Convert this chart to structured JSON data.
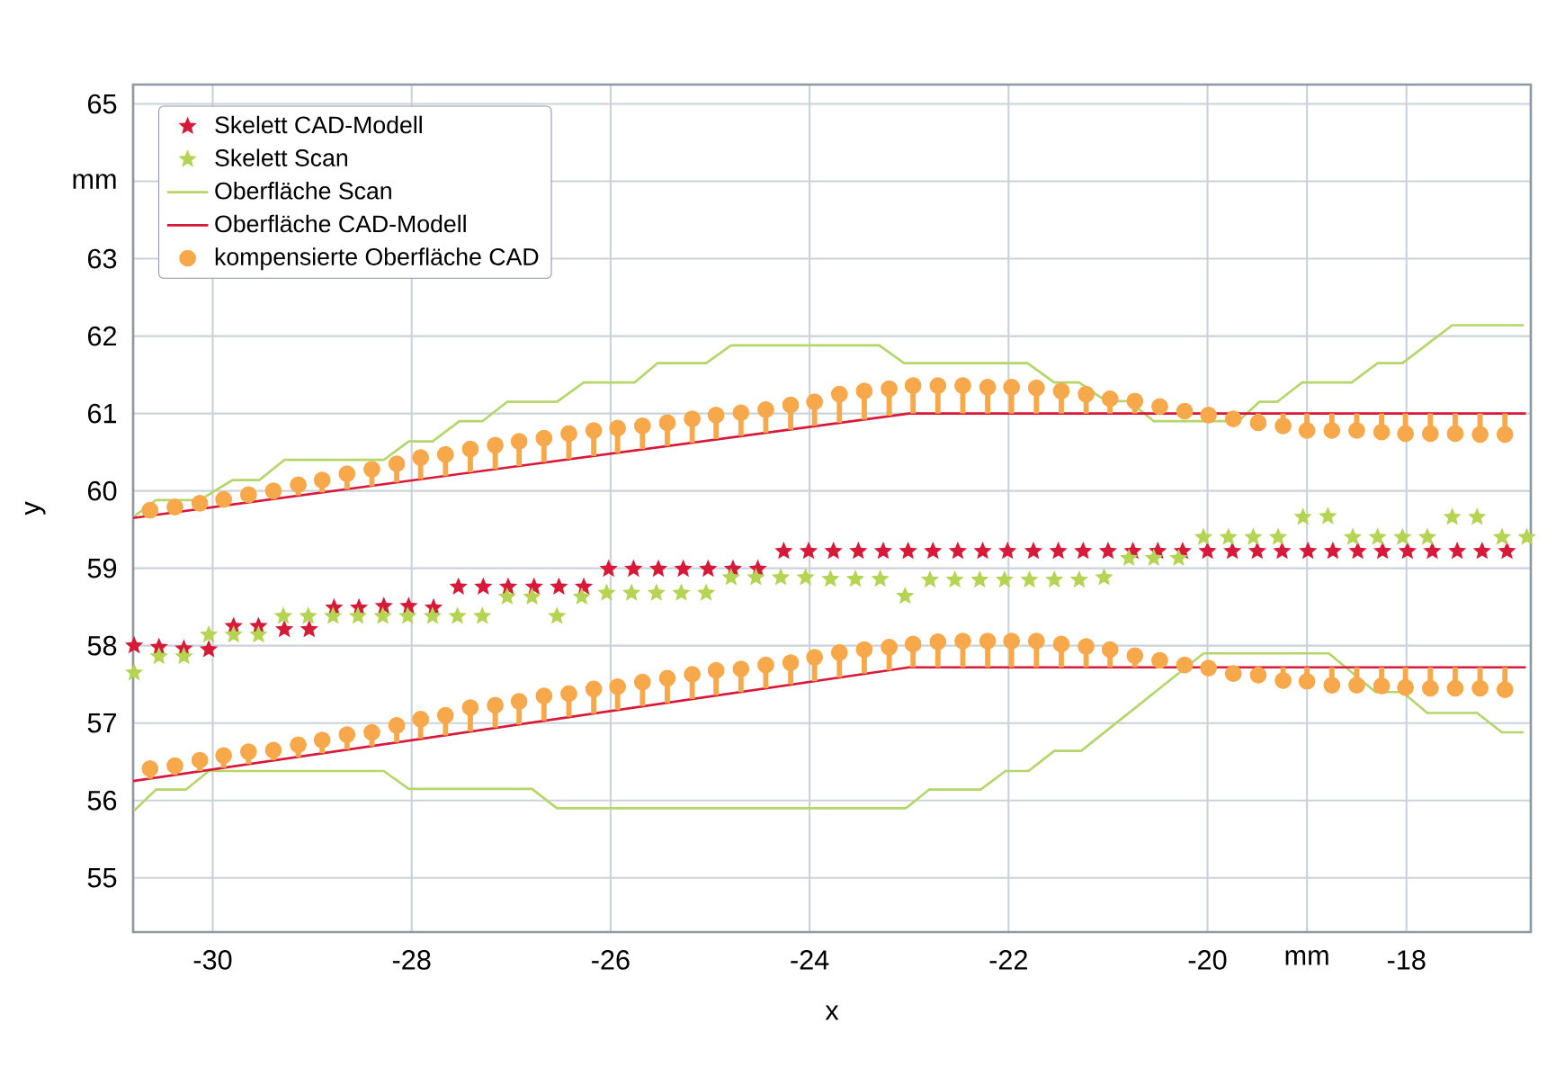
{
  "chart_data": {
    "type": "scatter",
    "xlabel": "x",
    "ylabel": "y",
    "xlim": [
      -30.8,
      -16.75
    ],
    "ylim": [
      54.3,
      65.25
    ],
    "xticks": [
      -30,
      -28,
      -26,
      -24,
      -22,
      -20,
      {
        "value": -19,
        "label": "mm"
      },
      -18
    ],
    "yticks": [
      55,
      56,
      57,
      58,
      59,
      60,
      61,
      62,
      63,
      {
        "value": 64,
        "label": "mm"
      },
      65
    ],
    "grid": true,
    "legend": "top left",
    "series": [
      {
        "name": "Skelett CAD-Modell",
        "type": "scatter",
        "marker": "star",
        "color": "#d7193a",
        "x": [
          -30.79,
          -30.54,
          -30.29,
          -30.04,
          -29.79,
          -29.54,
          -29.28,
          -29.03,
          -28.78,
          -28.53,
          -28.28,
          -28.03,
          -27.78,
          -27.53,
          -27.28,
          -27.03,
          -26.77,
          -26.52,
          -26.27,
          -26.02,
          -25.77,
          -25.52,
          -25.27,
          -25.02,
          -24.77,
          -24.52,
          -24.26,
          -24.01,
          -23.76,
          -23.51,
          -23.26,
          -23.01,
          -22.76,
          -22.51,
          -22.26,
          -22.01,
          -21.75,
          -21.5,
          -21.25,
          -21.0,
          -20.75,
          -20.5,
          -20.25,
          -20.0,
          -19.75,
          -19.5,
          -19.25,
          -18.99,
          -18.74,
          -18.49,
          -18.24,
          -17.99,
          -17.74,
          -17.49,
          -17.24,
          -16.99
        ],
        "values": [
          58.0,
          57.98,
          57.96,
          57.95,
          58.25,
          58.25,
          58.21,
          58.21,
          58.49,
          58.49,
          58.51,
          58.51,
          58.49,
          58.76,
          58.76,
          58.76,
          58.76,
          58.76,
          58.76,
          58.99,
          58.99,
          58.99,
          58.99,
          58.99,
          58.99,
          58.99,
          59.22,
          59.22,
          59.22,
          59.22,
          59.22,
          59.22,
          59.22,
          59.22,
          59.22,
          59.22,
          59.22,
          59.22,
          59.22,
          59.22,
          59.22,
          59.22,
          59.22,
          59.22,
          59.22,
          59.22,
          59.22,
          59.22,
          59.22,
          59.22,
          59.22,
          59.22,
          59.22,
          59.22,
          59.22,
          59.22
        ]
      },
      {
        "name": "Skelett Scan",
        "type": "scatter",
        "marker": "star",
        "color": "#b5d453",
        "x": [
          -30.79,
          -30.54,
          -30.29,
          -30.04,
          -29.79,
          -29.54,
          -29.29,
          -29.04,
          -28.79,
          -28.54,
          -28.29,
          -28.04,
          -27.79,
          -27.54,
          -27.29,
          -27.04,
          -26.79,
          -26.54,
          -26.29,
          -26.04,
          -25.79,
          -25.54,
          -25.29,
          -25.04,
          -24.79,
          -24.54,
          -24.29,
          -24.04,
          -23.79,
          -23.54,
          -23.29,
          -23.04,
          -22.79,
          -22.54,
          -22.29,
          -22.04,
          -21.79,
          -21.54,
          -21.29,
          -21.04,
          -20.79,
          -20.54,
          -20.29,
          -20.04,
          -19.79,
          -19.54,
          -19.29,
          -19.04,
          -18.79,
          -18.54,
          -18.29,
          -18.04,
          -17.79,
          -17.54,
          -17.29,
          -17.04,
          -16.79
        ],
        "values": [
          57.65,
          57.86,
          57.86,
          58.14,
          58.14,
          58.14,
          58.38,
          58.38,
          58.38,
          58.38,
          58.38,
          58.38,
          58.38,
          58.38,
          58.38,
          58.63,
          58.63,
          58.38,
          58.63,
          58.68,
          58.68,
          58.68,
          58.68,
          58.68,
          58.88,
          58.88,
          58.88,
          58.88,
          58.86,
          58.86,
          58.86,
          58.64,
          58.85,
          58.85,
          58.85,
          58.85,
          58.85,
          58.85,
          58.85,
          58.88,
          59.13,
          59.13,
          59.13,
          59.4,
          59.4,
          59.4,
          59.4,
          59.66,
          59.67,
          59.4,
          59.4,
          59.4,
          59.4,
          59.66,
          59.66,
          59.4,
          59.4
        ]
      },
      {
        "name": "Oberfläche Scan",
        "type": "line",
        "color": "#b5d66b",
        "x": [
          -30.79,
          -30.57,
          -30.13,
          -29.8,
          -29.53,
          -29.28,
          -28.28,
          -28.03,
          -27.79,
          -27.52,
          -27.29,
          -27.04,
          -26.54,
          -26.27,
          -25.76,
          -25.53,
          -25.04,
          -24.79,
          -23.3,
          -23.05,
          -21.81,
          -21.54,
          -21.29,
          -21.02,
          -20.79,
          -20.54,
          -19.69,
          -19.48,
          -19.3,
          -19.05,
          -18.55,
          -18.29,
          -18.04,
          -17.54,
          -16.82
        ],
        "values": [
          59.67,
          59.88,
          59.88,
          60.14,
          60.14,
          60.4,
          60.4,
          60.64,
          60.64,
          60.9,
          60.9,
          61.15,
          61.15,
          61.4,
          61.4,
          61.65,
          61.65,
          61.88,
          61.88,
          61.65,
          61.65,
          61.4,
          61.4,
          61.16,
          61.16,
          60.9,
          60.9,
          61.15,
          61.15,
          61.4,
          61.4,
          61.65,
          61.65,
          62.14,
          62.14
        ]
      },
      {
        "type": "line",
        "color": "#b5d66b",
        "x": [
          -30.79,
          -30.57,
          -30.27,
          -30.04,
          -28.28,
          -28.03,
          -26.79,
          -26.54,
          -23.03,
          -22.8,
          -22.28,
          -22.03,
          -21.8,
          -21.54,
          -21.27,
          -20.04,
          -18.78,
          -18.31,
          -18.04,
          -17.79,
          -17.29,
          -17.04,
          -16.82
        ],
        "values": [
          55.87,
          56.14,
          56.14,
          56.38,
          56.38,
          56.15,
          56.15,
          55.9,
          55.9,
          56.14,
          56.14,
          56.38,
          56.38,
          56.64,
          56.64,
          57.9,
          57.9,
          57.4,
          57.4,
          57.13,
          57.13,
          56.88,
          56.88
        ]
      },
      {
        "name": "Oberfläche CAD-Modell",
        "type": "line",
        "color": "#d7193a",
        "x": [
          -30.8,
          -23.0,
          -16.8
        ],
        "values": [
          59.65,
          61.0,
          61.0
        ]
      },
      {
        "type": "line",
        "color": "#d7193a",
        "x": [
          -30.8,
          -23.0,
          -16.8
        ],
        "values": [
          56.25,
          57.72,
          57.72
        ]
      },
      {
        "name": "kompensierte Oberfläche CAD",
        "type": "scatter",
        "marker": "circle",
        "color": "#f7a84a",
        "x": [
          -30.63,
          -30.38,
          -30.13,
          -29.89,
          -29.64,
          -29.39,
          -29.14,
          -28.9,
          -28.65,
          -28.4,
          -28.15,
          -27.91,
          -27.66,
          -27.41,
          -27.16,
          -26.92,
          -26.67,
          -26.42,
          -26.17,
          -25.93,
          -25.68,
          -25.43,
          -25.18,
          -24.94,
          -24.69,
          -24.44,
          -24.19,
          -23.95,
          -23.7,
          -23.45,
          -23.2,
          -22.96,
          -22.71,
          -22.46,
          -22.21,
          -21.97,
          -21.72,
          -21.47,
          -21.22,
          -20.98,
          -20.73,
          -20.48,
          -20.23,
          -19.99,
          -19.74,
          -19.49,
          -19.24,
          -19.0,
          -18.75,
          -18.5,
          -18.25,
          -18.01,
          -17.76,
          -17.51,
          -17.26,
          -17.01
        ],
        "values": [
          59.75,
          59.79,
          59.84,
          59.89,
          59.95,
          60.0,
          60.08,
          60.14,
          60.22,
          60.28,
          60.35,
          60.43,
          60.47,
          60.54,
          60.59,
          60.64,
          60.68,
          60.74,
          60.78,
          60.81,
          60.84,
          60.88,
          60.93,
          60.98,
          61.01,
          61.05,
          61.11,
          61.15,
          61.25,
          61.29,
          61.32,
          61.36,
          61.36,
          61.36,
          61.34,
          61.34,
          61.33,
          61.29,
          61.25,
          61.19,
          61.16,
          61.09,
          61.03,
          60.98,
          60.93,
          60.88,
          60.84,
          60.78,
          60.78,
          60.78,
          60.76,
          60.74,
          60.74,
          60.74,
          60.73,
          60.73
        ],
        "errors": [
          [
            59.68,
            59.75
          ],
          [
            59.72,
            59.79
          ],
          [
            59.76,
            59.84
          ],
          [
            59.81,
            59.89
          ],
          [
            59.85,
            59.95
          ],
          [
            59.89,
            60.0
          ],
          [
            59.94,
            60.08
          ],
          [
            59.98,
            60.14
          ],
          [
            60.02,
            60.22
          ],
          [
            60.06,
            60.28
          ],
          [
            60.11,
            60.35
          ],
          [
            60.15,
            60.43
          ],
          [
            60.19,
            60.47
          ],
          [
            60.24,
            60.54
          ],
          [
            60.28,
            60.59
          ],
          [
            60.32,
            60.64
          ],
          [
            60.37,
            60.68
          ],
          [
            60.41,
            60.74
          ],
          [
            60.45,
            60.78
          ],
          [
            60.49,
            60.81
          ],
          [
            60.54,
            60.84
          ],
          [
            60.58,
            60.88
          ],
          [
            60.62,
            60.93
          ],
          [
            60.67,
            60.98
          ],
          [
            60.71,
            61.01
          ],
          [
            60.75,
            61.05
          ],
          [
            60.79,
            61.11
          ],
          [
            60.84,
            61.15
          ],
          [
            60.88,
            61.25
          ],
          [
            60.92,
            61.29
          ],
          [
            60.97,
            61.32
          ],
          [
            61.0,
            61.36
          ],
          [
            61.0,
            61.36
          ],
          [
            61.0,
            61.36
          ],
          [
            61.0,
            61.34
          ],
          [
            61.0,
            61.34
          ],
          [
            61.0,
            61.33
          ],
          [
            61.0,
            61.29
          ],
          [
            61.0,
            61.25
          ],
          [
            61.0,
            61.19
          ],
          [
            61.0,
            61.16
          ],
          [
            61.0,
            61.09
          ],
          [
            61.0,
            61.03
          ],
          null,
          [
            60.93,
            61.0
          ],
          [
            60.88,
            61.0
          ],
          [
            60.84,
            61.0
          ],
          [
            60.78,
            61.0
          ],
          [
            60.78,
            61.0
          ],
          [
            60.78,
            61.0
          ],
          [
            60.76,
            61.0
          ],
          [
            60.74,
            61.0
          ],
          [
            60.74,
            61.0
          ],
          [
            60.74,
            61.0
          ],
          [
            60.73,
            61.0
          ],
          [
            60.73,
            61.0
          ]
        ]
      },
      {
        "type": "scatter",
        "marker": "circle",
        "color": "#f7a84a",
        "x": [
          -30.63,
          -30.38,
          -30.13,
          -29.89,
          -29.64,
          -29.39,
          -29.14,
          -28.9,
          -28.65,
          -28.4,
          -28.15,
          -27.91,
          -27.66,
          -27.41,
          -27.16,
          -26.92,
          -26.67,
          -26.42,
          -26.17,
          -25.93,
          -25.68,
          -25.43,
          -25.18,
          -24.94,
          -24.69,
          -24.44,
          -24.19,
          -23.95,
          -23.7,
          -23.45,
          -23.2,
          -22.96,
          -22.71,
          -22.46,
          -22.21,
          -21.97,
          -21.72,
          -21.47,
          -21.22,
          -20.98,
          -20.73,
          -20.48,
          -20.23,
          -19.99,
          -19.74,
          -19.49,
          -19.24,
          -19.0,
          -18.75,
          -18.5,
          -18.25,
          -18.01,
          -17.76,
          -17.51,
          -17.26,
          -17.01
        ],
        "values": [
          56.41,
          56.45,
          56.52,
          56.58,
          56.63,
          56.65,
          56.72,
          56.78,
          56.85,
          56.88,
          56.97,
          57.05,
          57.1,
          57.2,
          57.23,
          57.28,
          57.35,
          57.38,
          57.44,
          57.47,
          57.53,
          57.58,
          57.63,
          57.68,
          57.7,
          57.75,
          57.78,
          57.85,
          57.91,
          57.95,
          57.98,
          58.02,
          58.05,
          58.06,
          58.06,
          58.06,
          58.06,
          58.02,
          57.99,
          57.95,
          57.87,
          57.81,
          57.75,
          57.71,
          57.64,
          57.62,
          57.55,
          57.54,
          57.49,
          57.49,
          57.48,
          57.46,
          57.45,
          57.45,
          57.45,
          57.43
        ],
        "errors": [
          [
            56.28,
            56.41
          ],
          [
            56.33,
            56.45
          ],
          [
            56.38,
            56.52
          ],
          [
            56.42,
            56.58
          ],
          [
            56.47,
            56.63
          ],
          [
            56.52,
            56.65
          ],
          [
            56.56,
            56.72
          ],
          [
            56.61,
            56.78
          ],
          [
            56.66,
            56.85
          ],
          [
            56.7,
            56.88
          ],
          [
            56.75,
            56.97
          ],
          [
            56.8,
            57.05
          ],
          [
            56.84,
            57.1
          ],
          [
            56.89,
            57.2
          ],
          [
            56.94,
            57.23
          ],
          [
            56.98,
            57.28
          ],
          [
            57.03,
            57.35
          ],
          [
            57.08,
            57.38
          ],
          [
            57.12,
            57.44
          ],
          [
            57.17,
            57.47
          ],
          [
            57.22,
            57.53
          ],
          [
            57.26,
            57.58
          ],
          [
            57.31,
            57.63
          ],
          [
            57.36,
            57.68
          ],
          [
            57.4,
            57.7
          ],
          [
            57.45,
            57.75
          ],
          [
            57.5,
            57.78
          ],
          [
            57.54,
            57.85
          ],
          [
            57.59,
            57.91
          ],
          [
            57.64,
            57.95
          ],
          [
            57.68,
            57.98
          ],
          [
            57.72,
            58.02
          ],
          [
            57.72,
            58.05
          ],
          [
            57.72,
            58.06
          ],
          [
            57.72,
            58.06
          ],
          [
            57.72,
            58.06
          ],
          [
            57.72,
            58.06
          ],
          [
            57.72,
            58.02
          ],
          [
            57.72,
            57.99
          ],
          [
            57.72,
            57.95
          ],
          [
            57.72,
            57.87
          ],
          [
            57.72,
            57.81
          ],
          [
            57.72,
            57.75
          ],
          null,
          [
            57.64,
            57.72
          ],
          [
            57.62,
            57.72
          ],
          [
            57.55,
            57.72
          ],
          [
            57.54,
            57.72
          ],
          [
            57.49,
            57.72
          ],
          [
            57.49,
            57.72
          ],
          [
            57.48,
            57.72
          ],
          [
            57.46,
            57.72
          ],
          [
            57.45,
            57.72
          ],
          [
            57.45,
            57.72
          ],
          [
            57.45,
            57.72
          ],
          [
            57.43,
            57.72
          ]
        ]
      }
    ]
  }
}
